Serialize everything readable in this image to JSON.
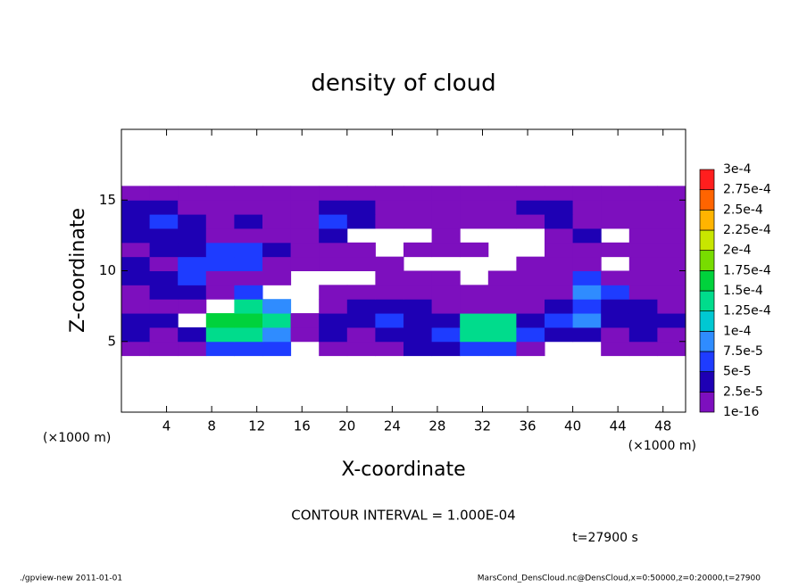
{
  "chart_data": {
    "type": "heatmap",
    "title": "density of cloud",
    "xlabel": "X-coordinate",
    "ylabel": "Z-coordinate",
    "xunit": "(×1000 m)",
    "xunit2": "(×1000 m)",
    "contour_note": "CONTOUR INTERVAL = 1.000E-04",
    "time_note": "t=27900 s",
    "footer_left": "./gpview-new   2011-01-01",
    "footer_right": "MarsCond_DensCloud.nc@DensCloud,x=0:50000,z=0:20000,t=27900",
    "xlim": [
      0,
      50
    ],
    "ylim": [
      0,
      20
    ],
    "xticks": [
      4,
      8,
      12,
      16,
      20,
      24,
      28,
      32,
      36,
      40,
      44,
      48
    ],
    "yticks": [
      5,
      10,
      15
    ],
    "x": [
      1.25,
      3.75,
      6.25,
      8.75,
      11.25,
      13.75,
      16.25,
      18.75,
      21.25,
      23.75,
      26.25,
      28.75,
      31.25,
      33.75,
      36.25,
      38.75,
      41.25,
      43.75,
      46.25,
      48.75
    ],
    "y": [
      4.5,
      5.5,
      6.5,
      7.5,
      8.5,
      9.5,
      10.5,
      11.5,
      12.5,
      13.5,
      14.5,
      15.5
    ],
    "values": [
      [
        1e-05,
        1e-05,
        1e-05,
        6e-05,
        6e-05,
        6e-05,
        null,
        1e-05,
        1e-05,
        1e-05,
        3e-05,
        3e-05,
        6e-05,
        6e-05,
        1e-05,
        null,
        null,
        1e-05,
        1e-05,
        1e-05
      ],
      [
        3e-05,
        1e-05,
        3e-05,
        0.00013,
        0.00013,
        8.5e-05,
        1e-05,
        3e-05,
        1e-05,
        3e-05,
        3e-05,
        6e-05,
        0.00013,
        0.00013,
        6e-05,
        3e-05,
        3e-05,
        1e-05,
        3e-05,
        1e-05
      ],
      [
        3e-05,
        3e-05,
        null,
        0.00016,
        0.00016,
        0.00013,
        1e-05,
        3e-05,
        3e-05,
        6e-05,
        3e-05,
        3e-05,
        0.00013,
        0.00013,
        3e-05,
        6e-05,
        8.5e-05,
        3e-05,
        3e-05,
        3e-05
      ],
      [
        1e-05,
        1e-05,
        1e-05,
        null,
        0.00013,
        8.5e-05,
        null,
        1e-05,
        3e-05,
        3e-05,
        3e-05,
        1e-05,
        1e-05,
        1e-05,
        1e-05,
        3e-05,
        6e-05,
        3e-05,
        3e-05,
        1e-05
      ],
      [
        1e-05,
        3e-05,
        3e-05,
        1e-05,
        6e-05,
        null,
        null,
        1e-05,
        1e-05,
        1e-05,
        1e-05,
        1e-05,
        1e-05,
        1e-05,
        1e-05,
        1e-05,
        8.5e-05,
        6e-05,
        1e-05,
        1e-05
      ],
      [
        3e-05,
        3e-05,
        6e-05,
        1e-05,
        1e-05,
        1e-05,
        null,
        null,
        null,
        1e-05,
        1e-05,
        1e-05,
        null,
        1e-05,
        1e-05,
        1e-05,
        6e-05,
        1e-05,
        1e-05,
        1e-05
      ],
      [
        3e-05,
        1e-05,
        6e-05,
        6e-05,
        6e-05,
        1e-05,
        1e-05,
        1e-05,
        1e-05,
        1e-05,
        null,
        null,
        null,
        null,
        1e-05,
        1e-05,
        1e-05,
        null,
        1e-05,
        1e-05
      ],
      [
        1e-05,
        3e-05,
        3e-05,
        6e-05,
        6e-05,
        3e-05,
        1e-05,
        1e-05,
        1e-05,
        null,
        1e-05,
        1e-05,
        1e-05,
        null,
        null,
        1e-05,
        1e-05,
        1e-05,
        1e-05,
        1e-05
      ],
      [
        3e-05,
        3e-05,
        3e-05,
        1e-05,
        1e-05,
        1e-05,
        1e-05,
        3e-05,
        null,
        null,
        null,
        1e-05,
        null,
        null,
        null,
        1e-05,
        3e-05,
        null,
        1e-05,
        1e-05
      ],
      [
        3e-05,
        6e-05,
        3e-05,
        1e-05,
        3e-05,
        1e-05,
        1e-05,
        6e-05,
        3e-05,
        1e-05,
        1e-05,
        1e-05,
        1e-05,
        1e-05,
        1e-05,
        3e-05,
        1e-05,
        1e-05,
        1e-05,
        1e-05
      ],
      [
        3e-05,
        3e-05,
        1e-05,
        1e-05,
        1e-05,
        1e-05,
        1e-05,
        3e-05,
        3e-05,
        1e-05,
        1e-05,
        1e-05,
        1e-05,
        1e-05,
        3e-05,
        3e-05,
        1e-05,
        1e-05,
        1e-05,
        1e-05
      ],
      [
        1e-05,
        1e-05,
        1e-05,
        1e-05,
        1e-05,
        1e-05,
        1e-05,
        1e-05,
        1e-05,
        1e-05,
        1e-05,
        1e-05,
        1e-05,
        1e-05,
        1e-05,
        1e-05,
        1e-05,
        1e-05,
        1e-05,
        1e-05
      ]
    ],
    "levels": [
      1e-16,
      {
        "value": 2.5e-05,
        "label": "2.5e-5"
      },
      {
        "value": 5e-05,
        "label": "5e-5"
      },
      {
        "value": 7.5e-05,
        "label": "7.5e-5"
      },
      {
        "value": 0.0001,
        "label": "1e-4"
      },
      {
        "value": 0.000125,
        "label": "1.25e-4"
      },
      {
        "value": 0.00015,
        "label": "1.5e-4"
      },
      {
        "value": 0.000175,
        "label": "1.75e-4"
      },
      {
        "value": 0.0002,
        "label": "2e-4"
      },
      {
        "value": 0.000225,
        "label": "2.25e-4"
      },
      {
        "value": 0.00025,
        "label": "2.5e-4"
      },
      {
        "value": 0.000275,
        "label": "2.75e-4"
      },
      {
        "value": 0.0003,
        "label": "3e-4"
      }
    ],
    "level_colors": [
      "#7d0fbe",
      "#1e00b4",
      "#1e3cff",
      "#2f8cff",
      "#00c8d2",
      "#00dc8c",
      "#00d23c",
      "#78dc00",
      "#c8e600",
      "#ffb400",
      "#ff6400",
      "#ff1e1e",
      "#ff8c8c"
    ]
  }
}
